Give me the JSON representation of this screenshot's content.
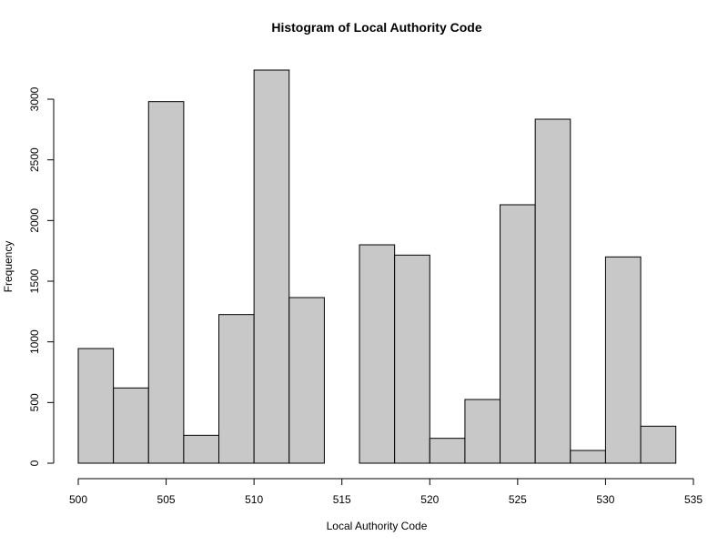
{
  "chart_data": {
    "type": "bar",
    "subtype": "histogram",
    "title": "Histogram of Local Authority Code",
    "xlabel": "Local Authority Code",
    "ylabel": "Frequency",
    "bins": [
      {
        "start": 500,
        "end": 502,
        "count": 945
      },
      {
        "start": 502,
        "end": 504,
        "count": 620
      },
      {
        "start": 504,
        "end": 506,
        "count": 2980
      },
      {
        "start": 506,
        "end": 508,
        "count": 230
      },
      {
        "start": 508,
        "end": 510,
        "count": 1225
      },
      {
        "start": 510,
        "end": 512,
        "count": 3240
      },
      {
        "start": 512,
        "end": 514,
        "count": 1365
      },
      {
        "start": 514,
        "end": 516,
        "count": 0
      },
      {
        "start": 516,
        "end": 518,
        "count": 1800
      },
      {
        "start": 518,
        "end": 520,
        "count": 1715
      },
      {
        "start": 520,
        "end": 522,
        "count": 205
      },
      {
        "start": 522,
        "end": 524,
        "count": 525
      },
      {
        "start": 524,
        "end": 526,
        "count": 2130
      },
      {
        "start": 526,
        "end": 528,
        "count": 2835
      },
      {
        "start": 528,
        "end": 530,
        "count": 105
      },
      {
        "start": 530,
        "end": 532,
        "count": 1700
      },
      {
        "start": 532,
        "end": 534,
        "count": 305
      }
    ],
    "xticks": [
      500,
      505,
      510,
      515,
      520,
      525,
      530,
      535
    ],
    "yticks": [
      0,
      500,
      1000,
      1500,
      2000,
      2500,
      3000
    ],
    "xlim": [
      500,
      535
    ],
    "ylim": [
      0,
      3000
    ],
    "grid": false,
    "colors": {
      "bar_fill": "#c8c8c8",
      "bar_stroke": "#000000"
    }
  }
}
